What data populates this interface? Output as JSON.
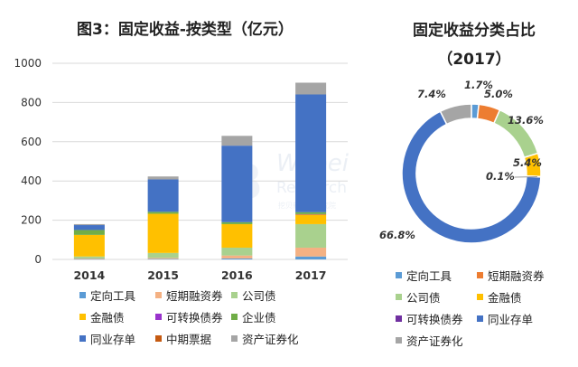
{
  "left_title": "图3：固定收益-按类型（亿元）",
  "right_title_line1": "固定收益分类占比",
  "right_title_line2": "（2017）",
  "watermark": {
    "logo_text": "B",
    "line1": "Wabei",
    "line2": "Research",
    "line3": "挖贝新三板研究院"
  },
  "legend_left": [
    {
      "label": "定向工具",
      "color": "#5b9bd5"
    },
    {
      "label": "短期融资券",
      "color": "#f4b183"
    },
    {
      "label": "公司债",
      "color": "#a9d18e"
    },
    {
      "label": "金融债",
      "color": "#ffc000"
    },
    {
      "label": "可转换债券",
      "color": "#9933cc"
    },
    {
      "label": "企业债",
      "color": "#70ad47"
    },
    {
      "label": "同业存单",
      "color": "#4472c4"
    },
    {
      "label": "中期票据",
      "color": "#c55a11"
    },
    {
      "label": "资产证券化",
      "color": "#a5a5a5"
    }
  ],
  "legend_right": [
    {
      "label": "定向工具",
      "color": "#5b9bd5"
    },
    {
      "label": "短期融资券",
      "color": "#ed7d31"
    },
    {
      "label": "公司债",
      "color": "#a9d18e"
    },
    {
      "label": "金融债",
      "color": "#ffc000"
    },
    {
      "label": "可转换债券",
      "color": "#7030a0"
    },
    {
      "label": "同业存单",
      "color": "#4472c4"
    },
    {
      "label": "资产证券化",
      "color": "#a5a5a5"
    }
  ],
  "chart_data": [
    {
      "type": "bar",
      "stacked": true,
      "title": "图3：固定收益-按类型（亿元）",
      "categories": [
        "2014",
        "2015",
        "2016",
        "2017"
      ],
      "ylim": [
        0,
        1000
      ],
      "yticks": [
        0,
        200,
        400,
        600,
        800,
        1000
      ],
      "grid": true,
      "legend_position": "bottom",
      "series": [
        {
          "name": "定向工具",
          "color": "#5b9bd5",
          "values": [
            2,
            3,
            5,
            15
          ]
        },
        {
          "name": "短期融资券",
          "color": "#f4b183",
          "values": [
            3,
            5,
            15,
            45
          ]
        },
        {
          "name": "公司债",
          "color": "#a9d18e",
          "values": [
            10,
            25,
            40,
            120
          ]
        },
        {
          "name": "金融债",
          "color": "#ffc000",
          "values": [
            110,
            200,
            120,
            50
          ]
        },
        {
          "name": "可转换债券",
          "color": "#9933cc",
          "values": [
            0,
            0,
            0,
            1
          ]
        },
        {
          "name": "企业债",
          "color": "#70ad47",
          "values": [
            25,
            10,
            10,
            10
          ]
        },
        {
          "name": "同业存单",
          "color": "#4472c4",
          "values": [
            25,
            165,
            390,
            600
          ]
        },
        {
          "name": "中期票据",
          "color": "#c55a11",
          "values": [
            0,
            0,
            0,
            0
          ]
        },
        {
          "name": "资产证券化",
          "color": "#a5a5a5",
          "values": [
            5,
            15,
            50,
            60
          ]
        }
      ]
    },
    {
      "type": "pie",
      "donut": true,
      "title": "固定收益分类占比（2017）",
      "legend_position": "bottom",
      "slices": [
        {
          "name": "定向工具",
          "value": 1.7,
          "label": "1.7%",
          "color": "#5b9bd5"
        },
        {
          "name": "短期融资券",
          "value": 5.0,
          "label": "5.0%",
          "color": "#ed7d31"
        },
        {
          "name": "公司债",
          "value": 13.6,
          "label": "13.6%",
          "color": "#a9d18e"
        },
        {
          "name": "金融债",
          "value": 5.4,
          "label": "5.4%",
          "color": "#ffc000"
        },
        {
          "name": "可转换债券",
          "value": 0.1,
          "label": "0.1%",
          "color": "#7030a0"
        },
        {
          "name": "同业存单",
          "value": 66.8,
          "label": "66.8%",
          "color": "#4472c4"
        },
        {
          "name": "资产证券化",
          "value": 7.4,
          "label": "7.4%",
          "color": "#a5a5a5"
        }
      ]
    }
  ]
}
